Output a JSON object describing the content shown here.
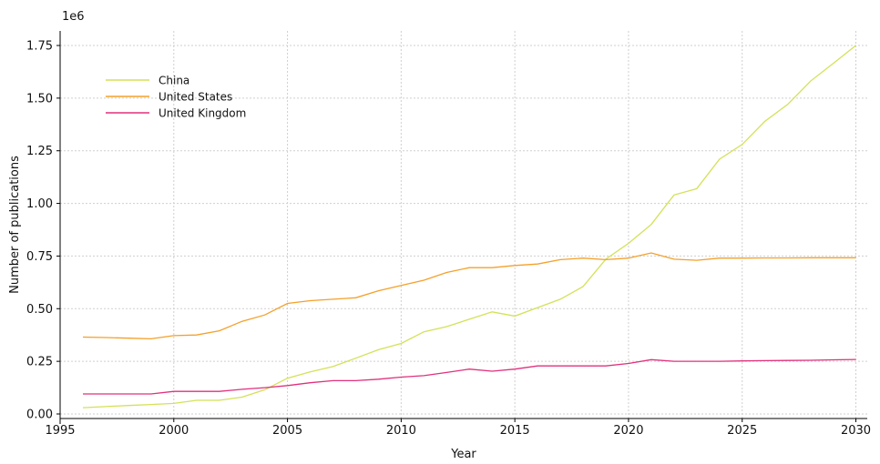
{
  "chart_data": {
    "type": "line",
    "title": "",
    "xlabel": "Year",
    "ylabel": "Number of publications",
    "y_offset_label": "1e6",
    "xlim": [
      1995,
      2030.5
    ],
    "ylim": [
      0,
      1.75
    ],
    "xticks": [
      1995,
      2000,
      2005,
      2010,
      2015,
      2020,
      2025,
      2030
    ],
    "yticks": [
      0.0,
      0.25,
      0.5,
      0.75,
      1.0,
      1.25,
      1.5,
      1.75
    ],
    "ytick_labels": [
      "0.00",
      "0.25",
      "0.50",
      "0.75",
      "1.00",
      "1.25",
      "1.50",
      "1.75"
    ],
    "grid": true,
    "legend_position": "top-left",
    "x": [
      1996,
      1997,
      1998,
      1999,
      2000,
      2001,
      2002,
      2003,
      2004,
      2005,
      2006,
      2007,
      2008,
      2009,
      2010,
      2011,
      2012,
      2013,
      2014,
      2015,
      2016,
      2017,
      2018,
      2019,
      2020,
      2021,
      2022,
      2023,
      2024,
      2025,
      2026,
      2027,
      2028,
      2029,
      2030
    ],
    "series": [
      {
        "name": "China",
        "color": "#d4e157",
        "values": [
          0.03,
          0.035,
          0.04,
          0.045,
          0.05,
          0.065,
          0.065,
          0.08,
          0.115,
          0.17,
          0.2,
          0.225,
          0.265,
          0.305,
          0.335,
          0.39,
          0.415,
          0.45,
          0.485,
          0.465,
          0.505,
          0.545,
          0.605,
          0.735,
          0.81,
          0.9,
          1.04,
          1.07,
          1.21,
          1.28,
          1.39,
          1.47,
          1.58,
          1.665,
          1.75
        ]
      },
      {
        "name": "United States",
        "color": "#f4a02a",
        "values": [
          0.365,
          0.363,
          0.36,
          0.357,
          0.372,
          0.375,
          0.395,
          0.44,
          0.47,
          0.525,
          0.538,
          0.545,
          0.552,
          0.585,
          0.61,
          0.635,
          0.672,
          0.695,
          0.695,
          0.705,
          0.712,
          0.733,
          0.74,
          0.733,
          0.74,
          0.765,
          0.735,
          0.73,
          0.74,
          0.74,
          0.741,
          0.741,
          0.742,
          0.742,
          0.742
        ]
      },
      {
        "name": "United Kingdom",
        "color": "#e0307c",
        "values": [
          0.095,
          0.095,
          0.095,
          0.095,
          0.107,
          0.107,
          0.107,
          0.117,
          0.125,
          0.135,
          0.148,
          0.158,
          0.158,
          0.165,
          0.175,
          0.182,
          0.197,
          0.213,
          0.203,
          0.213,
          0.228,
          0.228,
          0.228,
          0.228,
          0.24,
          0.258,
          0.25,
          0.25,
          0.25,
          0.252,
          0.253,
          0.254,
          0.255,
          0.257,
          0.259
        ]
      }
    ]
  }
}
